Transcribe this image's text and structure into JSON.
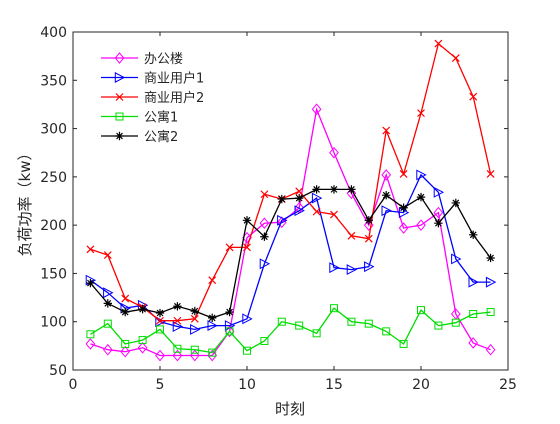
{
  "chart_data": {
    "type": "line",
    "xlabel": "时刻",
    "ylabel": "负荷功率（kw）",
    "xlim": [
      0,
      25
    ],
    "ylim": [
      50,
      400
    ],
    "xticks": [
      0,
      5,
      10,
      15,
      20,
      25
    ],
    "yticks": [
      50,
      100,
      150,
      200,
      250,
      300,
      350,
      400
    ],
    "grid": false,
    "legend_position": "top-left",
    "x": [
      1,
      2,
      3,
      4,
      5,
      6,
      7,
      8,
      9,
      10,
      11,
      12,
      13,
      14,
      15,
      16,
      17,
      18,
      19,
      20,
      21,
      22,
      23,
      24
    ],
    "series": [
      {
        "name": "办公楼",
        "color": "#ff00ff",
        "marker": "diamond",
        "values": [
          77,
          71,
          69,
          73,
          65,
          65,
          65,
          65,
          90,
          187,
          202,
          203,
          218,
          320,
          275,
          233,
          200,
          252,
          197,
          200,
          213,
          108,
          78,
          71
        ]
      },
      {
        "name": "商业用户1",
        "color": "#0000ff",
        "marker": "triangle-right",
        "values": [
          143,
          130,
          114,
          117,
          100,
          95,
          92,
          96,
          96,
          103,
          160,
          205,
          215,
          228,
          156,
          154,
          157,
          215,
          213,
          252,
          234,
          165,
          141,
          141
        ]
      },
      {
        "name": "商业用户2",
        "color": "#ff0000",
        "marker": "x",
        "values": [
          175,
          169,
          124,
          115,
          101,
          101,
          103,
          143,
          177,
          177,
          232,
          227,
          235,
          214,
          211,
          189,
          186,
          298,
          253,
          316,
          388,
          373,
          333,
          253
        ]
      },
      {
        "name": "公寓1",
        "color": "#00dd00",
        "marker": "square",
        "values": [
          87,
          98,
          77,
          81,
          92,
          72,
          71,
          68,
          90,
          70,
          80,
          100,
          96,
          88,
          114,
          100,
          98,
          90,
          77,
          112,
          96,
          99,
          108,
          110
        ]
      },
      {
        "name": "公寓2",
        "color": "#000000",
        "marker": "star",
        "values": [
          140,
          119,
          110,
          113,
          109,
          116,
          111,
          104,
          110,
          205,
          188,
          227,
          228,
          237,
          237,
          237,
          205,
          231,
          218,
          229,
          202,
          223,
          190,
          166
        ]
      }
    ]
  }
}
